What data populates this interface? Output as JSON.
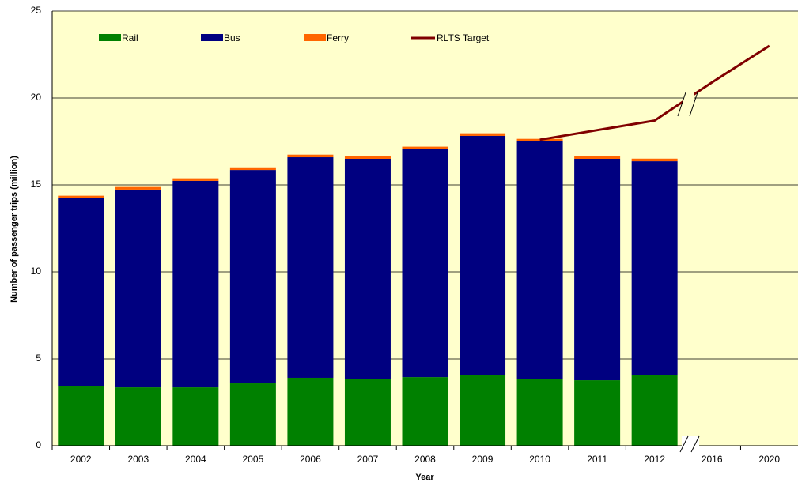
{
  "chart_data": {
    "type": "bar",
    "stacked": true,
    "x_label": "Year",
    "y_label": "Number of passenger trips (million)",
    "categories": [
      "2002",
      "2003",
      "2004",
      "2005",
      "2006",
      "2007",
      "2008",
      "2009",
      "2010",
      "2011",
      "2012",
      "2016",
      "2020"
    ],
    "series": [
      {
        "name": "Rail",
        "type": "bar",
        "color": "#008000",
        "values": [
          3.41,
          3.36,
          3.36,
          3.59,
          3.91,
          3.82,
          3.95,
          4.09,
          3.82,
          3.77,
          4.05,
          null,
          null
        ]
      },
      {
        "name": "Bus",
        "type": "bar",
        "color": "#000080",
        "values": [
          10.82,
          11.37,
          11.87,
          12.27,
          12.68,
          12.68,
          13.1,
          13.73,
          13.68,
          12.73,
          12.31,
          null,
          null
        ]
      },
      {
        "name": "Ferry",
        "type": "bar",
        "color": "#ff6600",
        "values": [
          0.15,
          0.15,
          0.15,
          0.15,
          0.15,
          0.15,
          0.15,
          0.15,
          0.15,
          0.15,
          0.15,
          null,
          null
        ]
      },
      {
        "name": "RLTS Target",
        "type": "line",
        "color": "#800000",
        "values": [
          null,
          null,
          null,
          null,
          null,
          null,
          null,
          null,
          17.6,
          18.15,
          18.7,
          20.9,
          23.0
        ]
      }
    ],
    "ylim": [
      0,
      25
    ],
    "yticks": [
      0,
      5,
      10,
      15,
      20,
      25
    ],
    "grid": true,
    "legend": "top",
    "background": "#ffffcc"
  }
}
